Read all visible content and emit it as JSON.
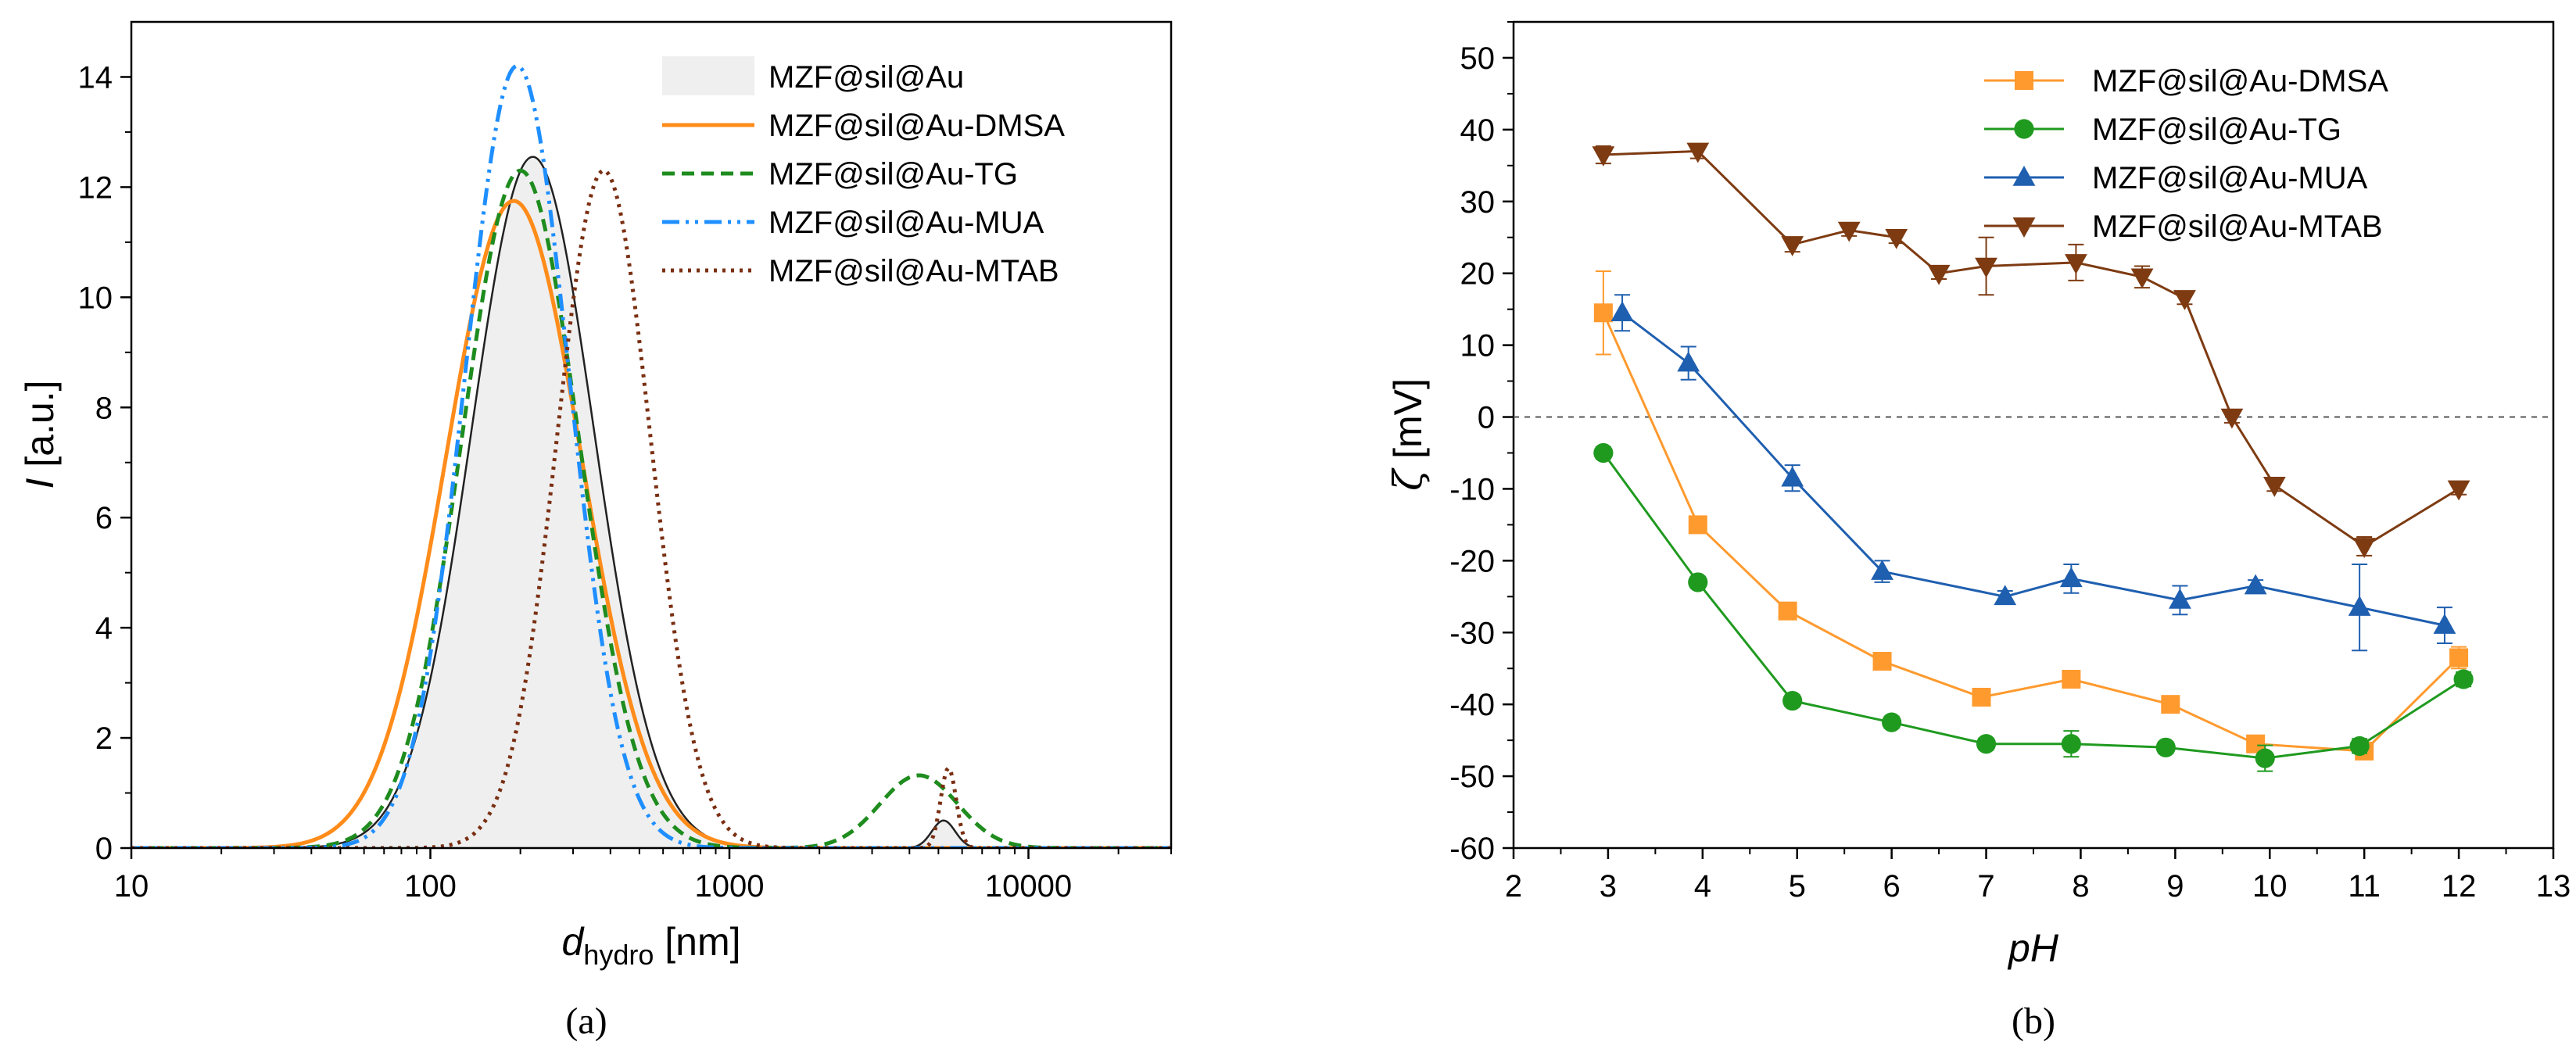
{
  "chart_data": [
    {
      "id": "a",
      "type": "line",
      "caption": "(a)",
      "xlabel_main": "d",
      "xlabel_sub": "hydro",
      "xlabel_unit": " [nm]",
      "xscale": "log",
      "xlim": [
        10,
        30000
      ],
      "ylabel_main": "I",
      "ylabel_unit": " [a.u.]",
      "ylim": [
        0,
        15
      ],
      "xticks": [
        10,
        100,
        1000,
        10000
      ],
      "xtick_labels": [
        "10",
        "100",
        "1000",
        "10000"
      ],
      "yticks": [
        0,
        2,
        4,
        6,
        8,
        10,
        12,
        14
      ],
      "ytick_labels": [
        "0",
        "2",
        "4",
        "6",
        "8",
        "10",
        "12",
        "14"
      ],
      "legend_position": "top-right",
      "series": [
        {
          "name": "MZF@sil@Au",
          "style": "filled",
          "color": "#222222",
          "fill": "#efefef",
          "peaks": [
            {
              "center": 220,
              "height": 12.55,
              "sigma": 0.47
            },
            {
              "center": 5200,
              "height": 0.5,
              "sigma": 0.09
            }
          ]
        },
        {
          "name": "MZF@sil@Au-DMSA",
          "style": "solid",
          "color": "#ff8c1a",
          "peaks": [
            {
              "center": 190,
              "height": 11.75,
              "sigma": 0.52
            }
          ]
        },
        {
          "name": "MZF@sil@Au-TG",
          "style": "dashed",
          "color": "#1e8c1e",
          "peaks": [
            {
              "center": 200,
              "height": 12.3,
              "sigma": 0.45
            },
            {
              "center": 4300,
              "height": 1.32,
              "sigma": 0.3
            }
          ]
        },
        {
          "name": "MZF@sil@Au-MUA",
          "style": "dashdotdot",
          "color": "#1f8fff",
          "peaks": [
            {
              "center": 195,
              "height": 14.2,
              "sigma": 0.4
            }
          ]
        },
        {
          "name": "MZF@sil@Au-MTAB",
          "style": "dotted",
          "color": "#7a2f12",
          "peaks": [
            {
              "center": 380,
              "height": 12.3,
              "sigma": 0.36
            },
            {
              "center": 5400,
              "height": 1.45,
              "sigma": 0.06
            }
          ]
        }
      ]
    },
    {
      "id": "b",
      "type": "line",
      "caption": "(b)",
      "xlabel": "pH",
      "ylabel_main": "ζ",
      "ylabel_unit": " [mV]",
      "xlim": [
        2,
        13
      ],
      "ylim": [
        -60,
        55
      ],
      "xticks": [
        2,
        3,
        4,
        5,
        6,
        7,
        8,
        9,
        10,
        11,
        12,
        13
      ],
      "xtick_labels": [
        "2",
        "3",
        "4",
        "5",
        "6",
        "7",
        "8",
        "9",
        "10",
        "11",
        "12",
        "13"
      ],
      "yticks": [
        -60,
        -50,
        -40,
        -30,
        -20,
        -10,
        0,
        10,
        20,
        30,
        40,
        50
      ],
      "ytick_labels": [
        "-60",
        "-50",
        "-40",
        "-30",
        "-20",
        "-10",
        "0",
        "10",
        "20",
        "30",
        "40",
        "50"
      ],
      "zero_line": true,
      "legend_position": "top-right",
      "series": [
        {
          "name": "MZF@sil@Au-DMSA",
          "marker": "square",
          "color": "#ff9a2e",
          "x": [
            2.95,
            3.95,
            4.9,
            5.9,
            6.95,
            7.9,
            8.95,
            9.85,
            11.0,
            12.0
          ],
          "y": [
            14.5,
            -15,
            -27,
            -34,
            -39,
            -36.5,
            -40,
            -45.5,
            -46.5,
            -33.5
          ],
          "err": [
            5.8,
            0.8,
            0.8,
            0.8,
            1,
            1,
            0.8,
            0.8,
            1,
            1.5
          ]
        },
        {
          "name": "MZF@sil@Au-TG",
          "marker": "circle",
          "color": "#1f9a1f",
          "x": [
            2.95,
            3.95,
            4.95,
            6.0,
            7.0,
            7.9,
            8.9,
            9.95,
            10.95,
            12.05
          ],
          "y": [
            -5,
            -23,
            -39.5,
            -42.5,
            -45.5,
            -45.5,
            -46,
            -47.5,
            -45.8,
            -36.5
          ],
          "err": [
            0.8,
            0.8,
            0.8,
            0.8,
            0.8,
            1.8,
            0.8,
            1.8,
            1,
            1
          ]
        },
        {
          "name": "MZF@sil@Au-MUA",
          "marker": "triangle-up",
          "color": "#1f5fb0",
          "x": [
            3.15,
            3.85,
            4.95,
            5.9,
            7.2,
            7.9,
            9.05,
            9.85,
            10.95,
            11.85
          ],
          "y": [
            14.5,
            7.5,
            -8.5,
            -21.5,
            -25,
            -22.5,
            -25.5,
            -23.5,
            -26.5,
            -29
          ],
          "err": [
            2.5,
            2.3,
            1.8,
            1.5,
            0.8,
            2,
            2,
            0.8,
            6,
            2.5
          ]
        },
        {
          "name": "MZF@sil@Au-MTAB",
          "marker": "triangle-down",
          "color": "#7e3b12",
          "x": [
            2.95,
            3.95,
            4.95,
            5.55,
            6.05,
            6.5,
            7.0,
            7.95,
            8.65,
            9.1,
            9.6,
            10.05,
            11.0,
            12.0
          ],
          "y": [
            36.5,
            37,
            24,
            26,
            25,
            20,
            21,
            21.5,
            19.5,
            16.5,
            0,
            -9.5,
            -18,
            -10
          ],
          "err": [
            1.2,
            1,
            1,
            0.8,
            0.8,
            0.8,
            4,
            2.5,
            1.5,
            0.8,
            0.8,
            0.8,
            1.3,
            0.8
          ]
        }
      ]
    }
  ]
}
